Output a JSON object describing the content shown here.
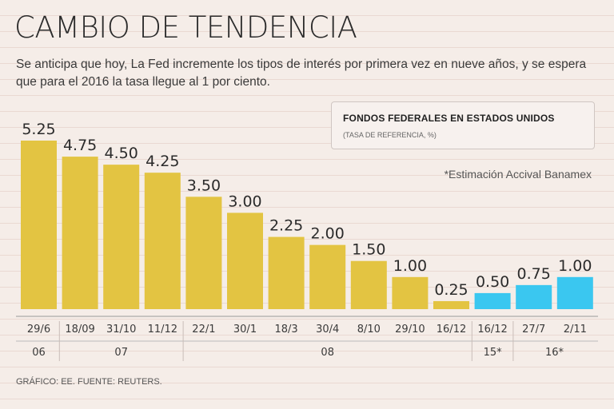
{
  "header": {
    "title": "CAMBIO DE TENDENCIA",
    "subtitle": "Se anticipa que hoy, La Fed incremente los tipos de interés por primera vez en nueve años, y se espera que para el 2016 la tasa llegue al 1 por ciento."
  },
  "legend": {
    "title": "FONDOS FEDERALES EN ESTADOS UNIDOS",
    "subtitle": "(TASA DE REFERENCIA, %)"
  },
  "note": "*Estimación Accival Banamex",
  "source": "GRÁFICO: EE. FUENTE: REUTERS.",
  "colors": {
    "actual": "#e3c442",
    "estimate": "#3ac7f0",
    "background": "#f5ede8"
  },
  "chart_data": {
    "type": "bar",
    "title": "FONDOS FEDERALES EN ESTADOS UNIDOS",
    "ylabel": "(TASA DE REFERENCIA, %)",
    "xlabel": "",
    "categories": [
      "29/6",
      "18/09",
      "31/10",
      "11/12",
      "22/1",
      "30/1",
      "18/3",
      "30/4",
      "8/10",
      "29/10",
      "16/12",
      "16/12",
      "27/7",
      "2/11"
    ],
    "values": [
      5.25,
      4.75,
      4.5,
      4.25,
      3.5,
      3.0,
      2.25,
      2.0,
      1.5,
      1.0,
      0.25,
      0.5,
      0.75,
      1.0
    ],
    "labels": [
      "5.25",
      "4.75",
      "4.50",
      "4.25",
      "3.50",
      "3.00",
      "2.25",
      "2.00",
      "1.50",
      "1.00",
      "0.25",
      "0.50",
      "0.75",
      "1.00"
    ],
    "estimated": [
      false,
      false,
      false,
      false,
      false,
      false,
      false,
      false,
      false,
      false,
      false,
      true,
      true,
      true
    ],
    "year_groups": [
      {
        "label": "06",
        "start": 0,
        "end": 0
      },
      {
        "label": "07",
        "start": 1,
        "end": 3
      },
      {
        "label": "08",
        "start": 4,
        "end": 10
      },
      {
        "label": "15*",
        "start": 11,
        "end": 11
      },
      {
        "label": "16*",
        "start": 12,
        "end": 13
      }
    ],
    "ylim": [
      0,
      5.25
    ],
    "grid": false
  }
}
